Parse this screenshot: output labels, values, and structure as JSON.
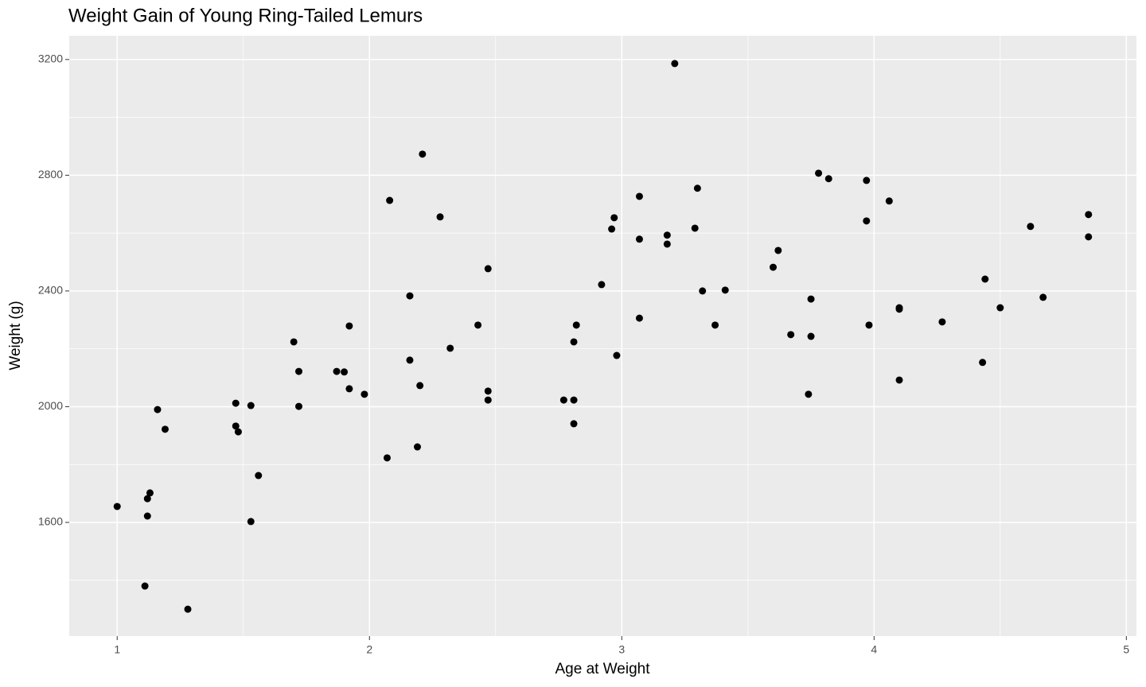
{
  "chart_data": {
    "type": "scatter",
    "title": "Weight Gain of Young Ring-Tailed Lemurs",
    "x_label": "Age at Weight",
    "y_label": "Weight (g)",
    "xlim": [
      0.81,
      5.04
    ],
    "ylim": [
      1207,
      3282
    ],
    "xticks": [
      1,
      2,
      3,
      4,
      5
    ],
    "yticks": [
      1600,
      2000,
      2400,
      2800,
      3200
    ],
    "xminor": [
      1.5,
      2.5,
      3.5,
      4.5
    ],
    "yminor": [
      1400,
      1800,
      2200,
      2600,
      3000
    ],
    "grid": true,
    "color": "#000000",
    "x": [
      1.0,
      1.12,
      1.13,
      1.12,
      1.11,
      1.28,
      1.16,
      1.19,
      1.47,
      1.47,
      1.48,
      1.53,
      1.56,
      1.53,
      1.7,
      1.72,
      1.72,
      1.87,
      1.9,
      1.92,
      1.92,
      1.98,
      2.07,
      2.08,
      2.21,
      2.16,
      2.16,
      2.2,
      2.19,
      2.28,
      2.32,
      2.43,
      2.47,
      2.47,
      2.47,
      2.77,
      2.81,
      2.81,
      2.81,
      2.82,
      2.92,
      2.96,
      2.97,
      2.98,
      3.07,
      3.07,
      3.07,
      3.18,
      3.18,
      3.21,
      3.3,
      3.29,
      3.32,
      3.37,
      3.41,
      3.6,
      3.62,
      3.67,
      3.75,
      3.75,
      3.74,
      3.78,
      3.82,
      3.97,
      3.97,
      3.98,
      4.06,
      4.1,
      4.1,
      4.1,
      4.27,
      4.44,
      4.43,
      4.5,
      4.62,
      4.67,
      4.85,
      4.85
    ],
    "y": [
      1655,
      1682,
      1702,
      1622,
      1380,
      1300,
      1990,
      1922,
      2012,
      1933,
      1913,
      2004,
      1762,
      1603,
      2224,
      2122,
      2001,
      2122,
      2120,
      2279,
      2062,
      2043,
      1823,
      2713,
      2873,
      2383,
      2161,
      2073,
      1861,
      2656,
      2202,
      2282,
      2477,
      2054,
      2023,
      2023,
      2023,
      1941,
      2224,
      2282,
      2422,
      2614,
      2653,
      2177,
      2727,
      2579,
      2306,
      2593,
      2562,
      3186,
      2755,
      2617,
      2400,
      2282,
      2403,
      2482,
      2540,
      2249,
      2372,
      2243,
      2043,
      2807,
      2788,
      2782,
      2642,
      2282,
      2711,
      2342,
      2337,
      2092,
      2293,
      2441,
      2153,
      2342,
      2623,
      2378,
      2664,
      2587
    ]
  }
}
